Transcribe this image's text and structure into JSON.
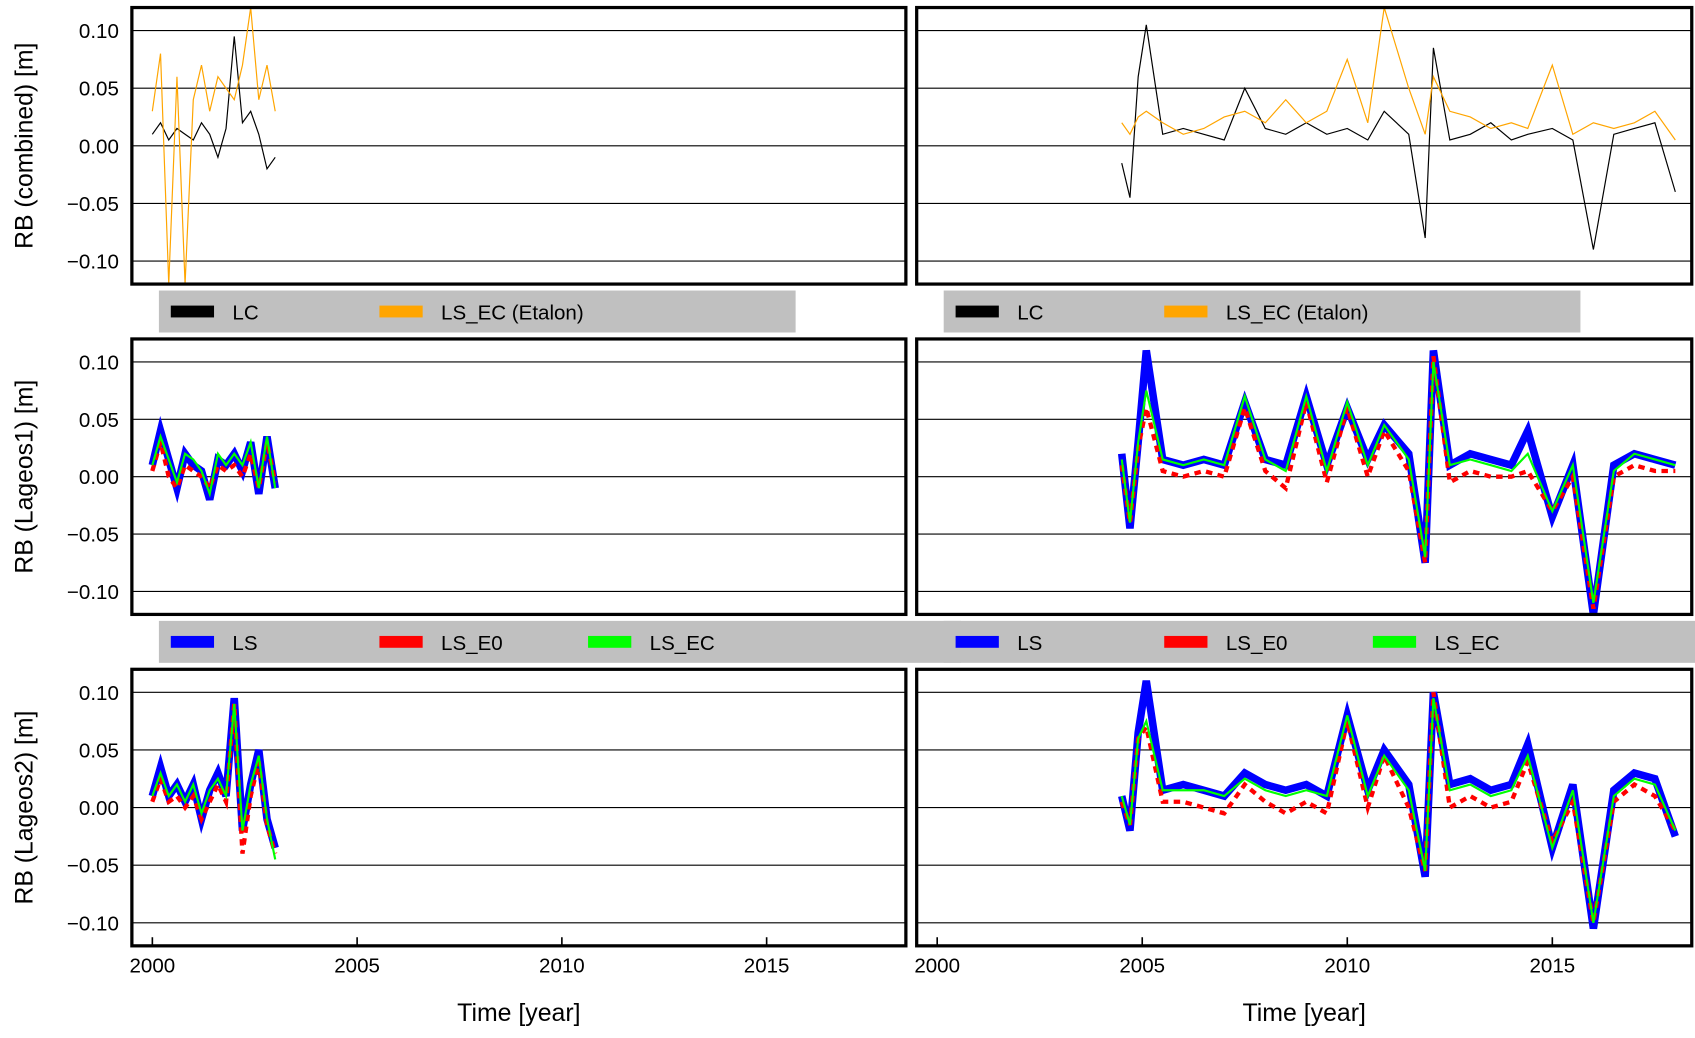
{
  "chart_data": [
    {
      "type": "line",
      "ylabel": "RB (combined) [m]",
      "legend": "below",
      "x": [
        2000.0,
        2000.2,
        2000.4,
        2000.6,
        2000.8,
        2001.0,
        2001.2,
        2001.4,
        2001.6,
        2001.8,
        2002.0,
        2002.2,
        2002.4,
        2002.6,
        2002.8,
        2003.0
      ],
      "series": [
        {
          "name": "LC",
          "color": "#000000",
          "values": [
            0.01,
            0.02,
            0.005,
            0.015,
            0.01,
            0.005,
            0.02,
            0.01,
            -0.01,
            0.015,
            0.095,
            0.02,
            0.03,
            0.01,
            -0.02,
            -0.01
          ]
        },
        {
          "name": "LS_EC (Etalon)",
          "color": "#ffa500",
          "values": [
            0.03,
            0.08,
            -0.12,
            0.06,
            -0.12,
            0.04,
            0.07,
            0.03,
            0.06,
            0.05,
            0.04,
            0.07,
            0.12,
            0.04,
            0.07,
            0.03
          ]
        }
      ],
      "xlim": [
        1999.5,
        2018.4
      ],
      "ylim": [
        -0.12,
        0.12
      ],
      "yticks": [
        {
          "value": -0.1,
          "label": "−0.10"
        },
        {
          "value": -0.05,
          "label": "−0.05"
        },
        {
          "value": 0,
          "label": "0.00"
        },
        {
          "value": 0.05,
          "label": "0.05"
        },
        {
          "value": 0.1,
          "label": "0.10"
        }
      ],
      "grid": true
    },
    {
      "type": "line",
      "legend": "below",
      "x": [
        2004.5,
        2004.7,
        2004.9,
        2005.1,
        2005.5,
        2006,
        2006.5,
        2007,
        2007.5,
        2008,
        2008.5,
        2009,
        2009.5,
        2010,
        2010.5,
        2010.9,
        2011.5,
        2011.9,
        2012.1,
        2012.5,
        2013,
        2013.5,
        2014,
        2014.4,
        2015,
        2015.5,
        2016.0,
        2016.5,
        2017,
        2017.5,
        2018
      ],
      "series": [
        {
          "name": "LC",
          "color": "#000000",
          "values": [
            -0.015,
            -0.045,
            0.06,
            0.105,
            0.01,
            0.015,
            0.01,
            0.005,
            0.05,
            0.015,
            0.01,
            0.02,
            0.01,
            0.015,
            0.005,
            0.03,
            0.01,
            -0.08,
            0.085,
            0.005,
            0.01,
            0.02,
            0.005,
            0.01,
            0.015,
            0.005,
            -0.09,
            0.01,
            0.015,
            0.02,
            -0.04
          ]
        },
        {
          "name": "LS_EC (Etalon)",
          "color": "#ffa500",
          "values": [
            0.02,
            0.01,
            0.025,
            0.03,
            0.02,
            0.01,
            0.015,
            0.025,
            0.03,
            0.02,
            0.04,
            0.02,
            0.03,
            0.075,
            0.02,
            0.12,
            0.05,
            0.01,
            0.06,
            0.03,
            0.025,
            0.015,
            0.02,
            0.015,
            0.07,
            0.01,
            0.02,
            0.015,
            0.02,
            0.03,
            0.005
          ]
        }
      ],
      "xlim": [
        1999.5,
        2018.4
      ],
      "ylim": [
        -0.12,
        0.12
      ],
      "yticks": [
        -0.1,
        -0.05,
        0,
        0.05,
        0.1
      ],
      "grid": true
    },
    {
      "type": "line",
      "ylabel": "RB (Lageos1) [m]",
      "legend": "below",
      "x": [
        2000.0,
        2000.2,
        2000.4,
        2000.6,
        2000.8,
        2001.0,
        2001.2,
        2001.4,
        2001.6,
        2001.8,
        2002.0,
        2002.2,
        2002.4,
        2002.6,
        2002.8,
        2003.0
      ],
      "series": [
        {
          "name": "LS",
          "color": "#0000ff",
          "values": [
            0.01,
            0.04,
            0.015,
            -0.01,
            0.02,
            0.01,
            0.005,
            -0.02,
            0.015,
            0.01,
            0.02,
            0.005,
            0.03,
            -0.015,
            0.035,
            -0.01
          ]
        },
        {
          "name": "LS_E0",
          "color": "#ff0000",
          "values": [
            0.005,
            0.03,
            0,
            -0.01,
            0.01,
            0.005,
            0,
            -0.01,
            0.01,
            0.005,
            0.01,
            0,
            0.02,
            -0.01,
            0.03,
            -0.005
          ]
        },
        {
          "name": "LS_EC",
          "color": "#00ff00",
          "values": [
            0.01,
            0.035,
            0.015,
            -0.005,
            0.02,
            0.015,
            0.005,
            -0.015,
            0.02,
            0.01,
            0.02,
            0.01,
            0.03,
            -0.01,
            0.035,
            -0.01
          ]
        }
      ],
      "xlim": [
        1999.5,
        2018.4
      ],
      "ylim": [
        -0.12,
        0.12
      ],
      "yticks": [
        {
          "value": -0.1,
          "label": "−0.10"
        },
        {
          "value": -0.05,
          "label": "−0.05"
        },
        {
          "value": 0,
          "label": "0.00"
        },
        {
          "value": 0.05,
          "label": "0.05"
        },
        {
          "value": 0.1,
          "label": "0.10"
        }
      ],
      "grid": true
    },
    {
      "type": "line",
      "legend": "below",
      "x": [
        2004.5,
        2004.7,
        2004.9,
        2005.1,
        2005.5,
        2006,
        2006.5,
        2007,
        2007.5,
        2008,
        2008.5,
        2009,
        2009.5,
        2010,
        2010.5,
        2010.9,
        2011.5,
        2011.9,
        2012.1,
        2012.5,
        2013,
        2013.5,
        2014,
        2014.4,
        2015,
        2015.5,
        2016.0,
        2016.5,
        2017,
        2017.5,
        2018
      ],
      "series": [
        {
          "name": "LS",
          "color": "#0000ff",
          "values": [
            0.02,
            -0.045,
            0.03,
            0.11,
            0.015,
            0.01,
            0.015,
            0.01,
            0.065,
            0.015,
            0.01,
            0.07,
            0.01,
            0.06,
            0.015,
            0.045,
            0.02,
            -0.075,
            0.11,
            0.01,
            0.02,
            0.015,
            0.01,
            0.04,
            -0.035,
            0.01,
            -0.12,
            0.01,
            0.02,
            0.015,
            0.01
          ]
        },
        {
          "name": "LS_E0",
          "color": "#ff0000",
          "values": [
            0.01,
            -0.04,
            0.025,
            0.06,
            0.005,
            0,
            0.005,
            0,
            0.06,
            0.005,
            -0.01,
            0.065,
            -0.005,
            0.06,
            0,
            0.04,
            0.005,
            -0.075,
            0.105,
            -0.005,
            0.005,
            0,
            0,
            0.005,
            -0.03,
            0,
            -0.115,
            0,
            0.01,
            0.005,
            0.005
          ]
        },
        {
          "name": "LS_EC",
          "color": "#00ff00",
          "values": [
            0.015,
            -0.04,
            0.03,
            0.075,
            0.015,
            0.01,
            0.015,
            0.01,
            0.07,
            0.015,
            0.005,
            0.07,
            0.005,
            0.065,
            0.01,
            0.045,
            0.015,
            -0.07,
            0.1,
            0.01,
            0.015,
            0.01,
            0.005,
            0.02,
            -0.03,
            0.01,
            -0.11,
            0.005,
            0.02,
            0.015,
            0.01
          ]
        }
      ],
      "xlim": [
        1999.5,
        2018.4
      ],
      "ylim": [
        -0.12,
        0.12
      ],
      "yticks": [
        -0.1,
        -0.05,
        0,
        0.05,
        0.1
      ],
      "grid": true
    },
    {
      "type": "line",
      "ylabel": "RB (Lageos2) [m]",
      "xlabel": "Time [year]",
      "x": [
        2000.0,
        2000.2,
        2000.4,
        2000.6,
        2000.8,
        2001.0,
        2001.2,
        2001.4,
        2001.6,
        2001.8,
        2002.0,
        2002.2,
        2002.4,
        2002.6,
        2002.8,
        2003.0
      ],
      "series": [
        {
          "color": "#0000ff",
          "values": [
            0.01,
            0.035,
            0.01,
            0.02,
            0.005,
            0.02,
            -0.01,
            0.015,
            0.03,
            0.01,
            0.095,
            -0.02,
            0.02,
            0.05,
            -0.01,
            -0.035
          ]
        },
        {
          "color": "#ff0000",
          "values": [
            0.005,
            0.025,
            0.005,
            0.01,
            0,
            0.01,
            -0.01,
            0.005,
            0.02,
            0.005,
            0.09,
            -0.04,
            0.01,
            0.04,
            -0.015,
            -0.04
          ]
        },
        {
          "color": "#00ff00",
          "values": [
            0.01,
            0.03,
            0.01,
            0.02,
            0.005,
            0.02,
            -0.005,
            0.015,
            0.025,
            0.01,
            0.09,
            -0.02,
            0.02,
            0.045,
            -0.01,
            -0.045
          ]
        }
      ],
      "xlim": [
        1999.5,
        2018.4
      ],
      "ylim": [
        -0.12,
        0.12
      ],
      "xticks": [
        2000,
        2005,
        2010,
        2015
      ],
      "yticks": [
        {
          "value": -0.1,
          "label": "−0.10"
        },
        {
          "value": -0.05,
          "label": "−0.05"
        },
        {
          "value": 0,
          "label": "0.00"
        },
        {
          "value": 0.05,
          "label": "0.05"
        },
        {
          "value": 0.1,
          "label": "0.10"
        }
      ],
      "grid": true
    },
    {
      "type": "line",
      "xlabel": "Time [year]",
      "x": [
        2004.5,
        2004.7,
        2004.9,
        2005.1,
        2005.5,
        2006,
        2006.5,
        2007,
        2007.5,
        2008,
        2008.5,
        2009,
        2009.5,
        2010,
        2010.5,
        2010.9,
        2011.5,
        2011.9,
        2012.1,
        2012.5,
        2013,
        2013.5,
        2014,
        2014.4,
        2015,
        2015.5,
        2016.0,
        2016.5,
        2017,
        2017.5,
        2018
      ],
      "series": [
        {
          "color": "#0000ff",
          "values": [
            0.01,
            -0.02,
            0.065,
            0.11,
            0.015,
            0.02,
            0.015,
            0.01,
            0.03,
            0.02,
            0.015,
            0.02,
            0.01,
            0.08,
            0.015,
            0.05,
            0.02,
            -0.06,
            0.1,
            0.02,
            0.025,
            0.015,
            0.02,
            0.055,
            -0.035,
            0.02,
            -0.105,
            0.015,
            0.03,
            0.025,
            -0.025
          ]
        },
        {
          "color": "#ff0000",
          "values": [
            0.005,
            -0.015,
            0.06,
            0.07,
            0.005,
            0.005,
            0,
            -0.005,
            0.02,
            0.005,
            -0.005,
            0.005,
            -0.005,
            0.075,
            0,
            0.045,
            0,
            -0.055,
            0.1,
            0,
            0.01,
            0,
            0.005,
            0.04,
            -0.03,
            0.005,
            -0.1,
            0.005,
            0.02,
            0.01,
            -0.02
          ]
        },
        {
          "color": "#00ff00",
          "values": [
            0.01,
            -0.015,
            0.06,
            0.075,
            0.015,
            0.015,
            0.015,
            0.01,
            0.025,
            0.015,
            0.01,
            0.015,
            0.01,
            0.08,
            0.01,
            0.045,
            0.015,
            -0.055,
            0.095,
            0.015,
            0.02,
            0.01,
            0.015,
            0.045,
            -0.035,
            0.015,
            -0.1,
            0.01,
            0.025,
            0.02,
            -0.02
          ]
        }
      ],
      "xlim": [
        1999.5,
        2018.4
      ],
      "ylim": [
        -0.12,
        0.12
      ],
      "xticks": [
        2000,
        2005,
        2010,
        2015
      ],
      "yticks": [
        -0.1,
        -0.05,
        0,
        0.05,
        0.1
      ],
      "grid": true
    }
  ]
}
